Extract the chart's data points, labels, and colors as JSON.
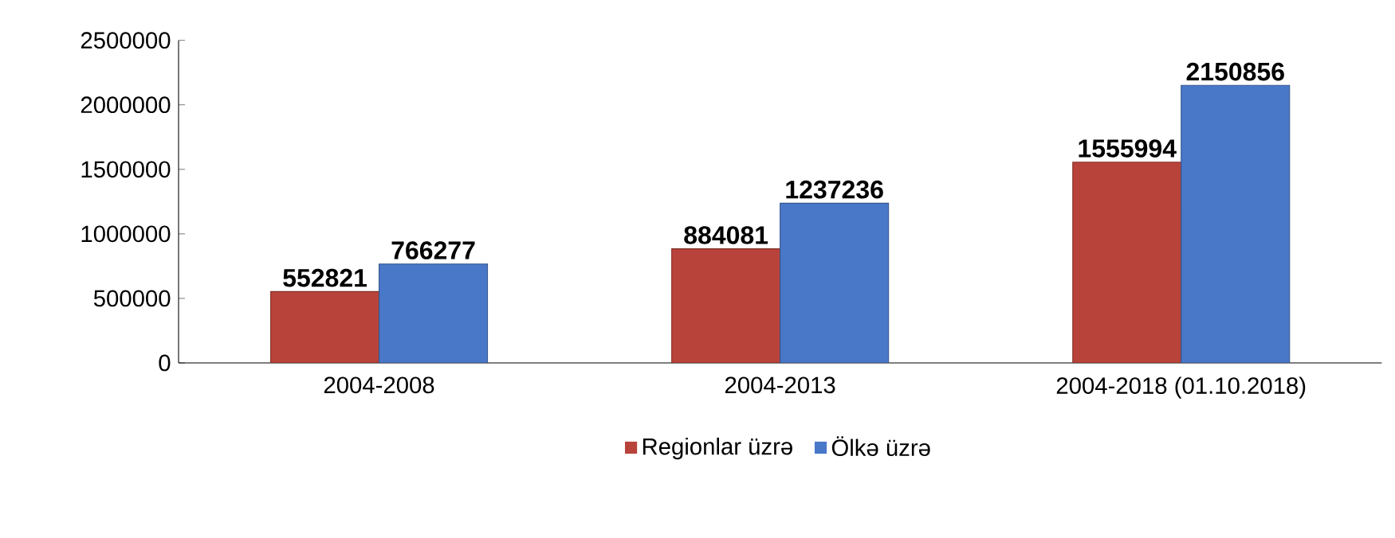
{
  "chart_data": {
    "type": "bar",
    "categories": [
      "2004-2008",
      "2004-2013",
      "2004-2018 (01.10.2018)"
    ],
    "series": [
      {
        "name": "Regionlar üzrə",
        "color": "#b8433a",
        "values": [
          552821,
          884081,
          1555994
        ]
      },
      {
        "name": "Ölkə üzrə",
        "color": "#4a78c8",
        "values": [
          766277,
          1237236,
          2150856
        ]
      }
    ],
    "ylim": [
      0,
      2500000
    ],
    "yticks": [
      0,
      500000,
      1000000,
      1500000,
      2000000,
      2500000
    ],
    "data_labels": true,
    "legend": "bottom",
    "grid": false
  }
}
